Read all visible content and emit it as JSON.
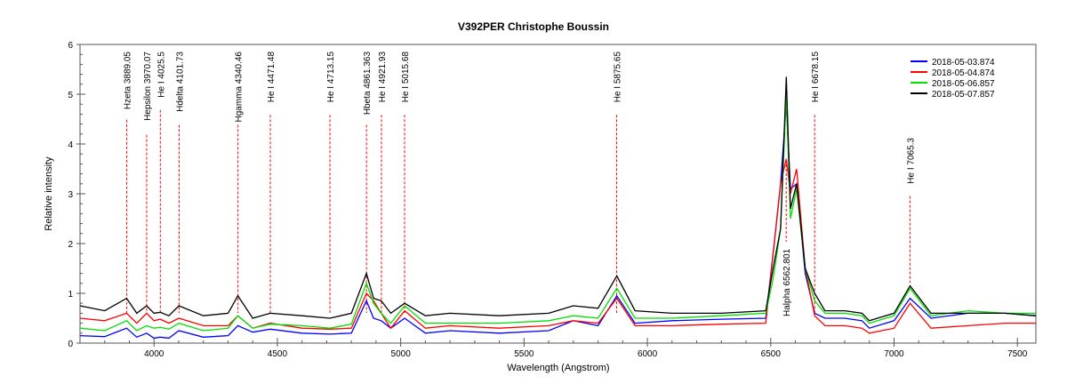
{
  "chart_data": {
    "type": "line",
    "title": "V392PER   Christophe Boussin",
    "xlabel": "Wavelength (Angstrom)",
    "ylabel": "Relative intensity",
    "xlim": [
      3700,
      7575
    ],
    "ylim": [
      0,
      6
    ],
    "xticks": [
      4000,
      4500,
      5000,
      5500,
      6000,
      6500,
      7000,
      7500
    ],
    "yticks": [
      0,
      1,
      2,
      3,
      4,
      5,
      6
    ],
    "grid": false,
    "legend_position": "top-right",
    "x": [
      3700,
      3800,
      3889,
      3930,
      3970,
      4000,
      4025,
      4060,
      4101,
      4200,
      4300,
      4340,
      4400,
      4471,
      4600,
      4713,
      4800,
      4861,
      4890,
      4921,
      4960,
      5016,
      5100,
      5200,
      5400,
      5600,
      5700,
      5800,
      5876,
      5950,
      6100,
      6300,
      6480,
      6510,
      6540,
      6563,
      6580,
      6605,
      6640,
      6678,
      6720,
      6800,
      6870,
      6900,
      7000,
      7065,
      7150,
      7300,
      7450,
      7575
    ],
    "series": [
      {
        "name": "2018-05-03.874",
        "color": "#0000ff",
        "values": [
          0.15,
          0.13,
          0.3,
          0.12,
          0.2,
          0.1,
          0.12,
          0.1,
          0.25,
          0.12,
          0.15,
          0.35,
          0.22,
          0.28,
          0.2,
          0.18,
          0.2,
          0.85,
          0.5,
          0.45,
          0.3,
          0.5,
          0.2,
          0.25,
          0.2,
          0.25,
          0.45,
          0.35,
          0.95,
          0.4,
          0.45,
          0.48,
          0.5,
          1.8,
          3.2,
          4.8,
          3.1,
          3.2,
          1.4,
          0.6,
          0.5,
          0.5,
          0.45,
          0.3,
          0.45,
          0.9,
          0.5,
          0.6,
          0.6,
          0.55
        ]
      },
      {
        "name": "2018-05-04.874",
        "color": "#ff0000",
        "values": [
          0.5,
          0.45,
          0.6,
          0.4,
          0.6,
          0.45,
          0.48,
          0.4,
          0.5,
          0.35,
          0.35,
          0.55,
          0.3,
          0.4,
          0.3,
          0.28,
          0.3,
          1.0,
          0.85,
          0.6,
          0.3,
          0.65,
          0.3,
          0.35,
          0.3,
          0.35,
          0.45,
          0.4,
          0.9,
          0.35,
          0.35,
          0.38,
          0.4,
          1.8,
          3.2,
          3.7,
          3.0,
          3.5,
          1.5,
          0.55,
          0.35,
          0.35,
          0.3,
          0.2,
          0.3,
          0.8,
          0.3,
          0.35,
          0.4,
          0.4
        ]
      },
      {
        "name": "2018-05-06.857",
        "color": "#00e000",
        "values": [
          0.3,
          0.25,
          0.45,
          0.25,
          0.35,
          0.3,
          0.32,
          0.28,
          0.4,
          0.25,
          0.3,
          0.55,
          0.3,
          0.38,
          0.35,
          0.3,
          0.38,
          1.2,
          0.8,
          0.6,
          0.4,
          0.75,
          0.4,
          0.4,
          0.4,
          0.45,
          0.55,
          0.5,
          1.1,
          0.5,
          0.5,
          0.55,
          0.6,
          1.3,
          2.3,
          5.0,
          2.5,
          3.1,
          1.5,
          0.85,
          0.6,
          0.6,
          0.55,
          0.4,
          0.55,
          1.1,
          0.55,
          0.65,
          0.6,
          0.6
        ]
      },
      {
        "name": "2018-05-07.857",
        "color": "#000000",
        "values": [
          0.75,
          0.65,
          0.9,
          0.6,
          0.75,
          0.6,
          0.62,
          0.55,
          0.75,
          0.55,
          0.6,
          0.95,
          0.5,
          0.6,
          0.55,
          0.5,
          0.6,
          1.4,
          0.9,
          0.85,
          0.6,
          0.8,
          0.55,
          0.6,
          0.55,
          0.6,
          0.75,
          0.7,
          1.35,
          0.65,
          0.6,
          0.6,
          0.65,
          1.5,
          2.3,
          5.35,
          2.7,
          3.2,
          1.5,
          1.0,
          0.65,
          0.65,
          0.6,
          0.45,
          0.6,
          1.15,
          0.6,
          0.6,
          0.6,
          0.55
        ]
      }
    ],
    "annotations": [
      {
        "label": "Hzeta 3889.05",
        "wavelength": 3889.05
      },
      {
        "label": "Hepsilon 3970.07",
        "wavelength": 3970.07
      },
      {
        "label": "He I 4025.5",
        "wavelength": 4025.5
      },
      {
        "label": "Hdelta 4101.73",
        "wavelength": 4101.73
      },
      {
        "label": "Hgamma 4340.46",
        "wavelength": 4340.46
      },
      {
        "label": "He I 4471.48",
        "wavelength": 4471.48
      },
      {
        "label": "He I 4713.15",
        "wavelength": 4713.15
      },
      {
        "label": "Hbeta 4861.363",
        "wavelength": 4861.363
      },
      {
        "label": "He I 4921.93",
        "wavelength": 4921.93
      },
      {
        "label": "He I 5015.68",
        "wavelength": 5015.68
      },
      {
        "label": "He I 5875.65",
        "wavelength": 5875.65
      },
      {
        "label": "Halpha 6562.801",
        "wavelength": 6562.801
      },
      {
        "label": "He I 6678.15",
        "wavelength": 6678.15
      },
      {
        "label": "He I 7065.3",
        "wavelength": 7065.3
      }
    ],
    "annotation_color": "#ff0000"
  }
}
